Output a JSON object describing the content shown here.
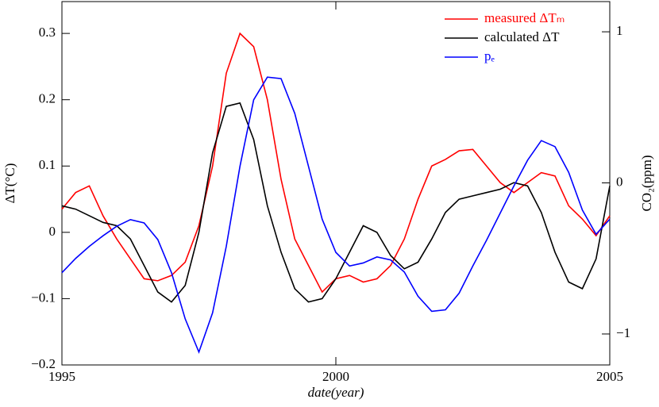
{
  "chart_data": {
    "type": "line",
    "xlabel": "date(year)",
    "ylabel": "ΔT(°C)",
    "y2label": "CO₂(ppm)",
    "x": [
      1995,
      1995.25,
      1995.5,
      1995.75,
      1996,
      1996.25,
      1996.5,
      1996.75,
      1997,
      1997.25,
      1997.5,
      1997.75,
      1998,
      1998.25,
      1998.5,
      1998.75,
      1999,
      1999.25,
      1999.5,
      1999.75,
      2000,
      2000.25,
      2000.5,
      2000.75,
      2001,
      2001.25,
      2001.5,
      2001.75,
      2002,
      2002.25,
      2002.5,
      2002.75,
      2003,
      2003.25,
      2003.5,
      2003.75,
      2004,
      2004.25,
      2004.5,
      2004.75,
      2005
    ],
    "series": [
      {
        "name": "measured ΔTₘ",
        "color": "#ff0000",
        "values": [
          0.035,
          0.06,
          0.07,
          0.025,
          -0.01,
          -0.04,
          -0.07,
          -0.073,
          -0.065,
          -0.045,
          0.01,
          0.1,
          0.24,
          0.3,
          0.28,
          0.2,
          0.08,
          -0.01,
          -0.05,
          -0.09,
          -0.07,
          -0.065,
          -0.075,
          -0.07,
          -0.05,
          -0.01,
          0.05,
          0.1,
          0.11,
          0.123,
          0.125,
          0.1,
          0.075,
          0.06,
          0.075,
          0.09,
          0.085,
          0.04,
          0.02,
          -0.005,
          0.025
        ]
      },
      {
        "name": "calculated ΔT",
        "color": "#000000",
        "values": [
          0.04,
          0.035,
          0.025,
          0.015,
          0.01,
          -0.01,
          -0.05,
          -0.09,
          -0.105,
          -0.08,
          0.0,
          0.12,
          0.19,
          0.195,
          0.14,
          0.04,
          -0.03,
          -0.085,
          -0.105,
          -0.1,
          -0.07,
          -0.03,
          0.01,
          0.0,
          -0.035,
          -0.055,
          -0.045,
          -0.01,
          0.03,
          0.05,
          0.055,
          0.06,
          0.065,
          0.075,
          0.07,
          0.03,
          -0.03,
          -0.075,
          -0.085,
          -0.04,
          0.07
        ]
      },
      {
        "name": "pₑ",
        "color": "#0000ff",
        "axis": "y2",
        "values": [
          -0.594,
          -0.5,
          -0.42,
          -0.35,
          -0.287,
          -0.243,
          -0.265,
          -0.375,
          -0.594,
          -0.9,
          -1.12,
          -0.86,
          -0.42,
          0.11,
          0.55,
          0.7,
          0.69,
          0.46,
          0.11,
          -0.24,
          -0.46,
          -0.55,
          -0.53,
          -0.49,
          -0.51,
          -0.59,
          -0.75,
          -0.85,
          -0.84,
          -0.73,
          -0.55,
          -0.38,
          -0.2,
          -0.02,
          0.15,
          0.28,
          0.24,
          0.07,
          -0.18,
          -0.34,
          -0.24
        ]
      }
    ],
    "xlim": [
      1995,
      2005
    ],
    "xticks": [
      1995,
      2000,
      2005
    ],
    "ylim": [
      -0.2,
      0.348
    ],
    "yticks": [
      {
        "value": -0.2,
        "label": "−0.2"
      },
      {
        "value": -0.1,
        "label": "−0.1"
      },
      0,
      0.1,
      0.2,
      0.3
    ],
    "y2lim": [
      -1.205,
      1.2
    ],
    "y2ticks": [
      {
        "value": -1,
        "label": "−1"
      },
      0,
      1
    ],
    "legend": "upper right"
  }
}
